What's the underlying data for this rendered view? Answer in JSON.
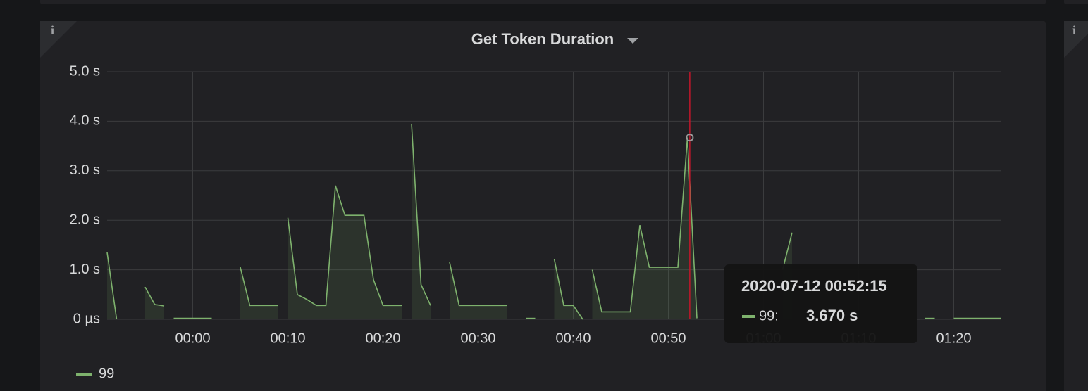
{
  "chart_data": {
    "type": "line",
    "title": "Get Token Duration",
    "x": [
      "23:51",
      "23:52",
      null,
      "23:55",
      "23:56",
      "23:57",
      null,
      "23:58",
      "00:02",
      null,
      "00:05",
      "00:06",
      "00:09",
      null,
      "00:10",
      "00:11",
      "00:12",
      "00:13",
      "00:14",
      "00:15",
      "00:16",
      "00:17",
      "00:18",
      "00:19",
      "00:20",
      "00:21",
      "00:22",
      null,
      "00:23",
      "00:24",
      "00:25",
      null,
      "00:27",
      "00:28",
      "00:33",
      null,
      "00:35",
      "00:36",
      null,
      "00:38",
      "00:39",
      "00:40",
      "00:41",
      null,
      "00:42",
      "00:43",
      "00:46",
      "00:47",
      "00:48",
      "00:51",
      "00:52",
      "00:53",
      null,
      "01:02",
      "01:03",
      null,
      "01:17",
      "01:18",
      null,
      "01:20",
      "01:25"
    ],
    "series": [
      {
        "name": "99",
        "color": "#7eb26d",
        "values": [
          1.35,
          0,
          null,
          0.65,
          0.3,
          0.27,
          null,
          0.02,
          0.02,
          null,
          1.05,
          0.28,
          0.28,
          null,
          2.05,
          0.5,
          0.4,
          0.28,
          0.28,
          2.7,
          2.1,
          2.1,
          2.1,
          0.8,
          0.28,
          0.28,
          0.28,
          null,
          3.95,
          0.7,
          0.28,
          null,
          1.15,
          0.28,
          0.28,
          null,
          0.02,
          0.02,
          null,
          1.22,
          0.28,
          0.28,
          0,
          null,
          1.0,
          0.15,
          0.15,
          1.9,
          1.05,
          1.05,
          3.67,
          0.02,
          null,
          1.0,
          1.75,
          null,
          0.02,
          0.02,
          null,
          0.02,
          0.02
        ]
      }
    ],
    "xlim": [
      "23:51",
      "01:25"
    ],
    "xticks": [
      "00:00",
      "00:10",
      "00:20",
      "00:30",
      "00:40",
      "00:50",
      "01:00",
      "01:10",
      "01:20"
    ],
    "ylim": [
      0,
      5
    ],
    "yticks": [
      {
        "value": 0,
        "label": "0 µs"
      },
      {
        "value": 1,
        "label": "1.0 s"
      },
      {
        "value": 2,
        "label": "2.0 s"
      },
      {
        "value": 3,
        "label": "3.0 s"
      },
      {
        "value": 4,
        "label": "4.0 s"
      },
      {
        "value": 5,
        "label": "5.0 s"
      }
    ],
    "grid": true,
    "legend": "bottom-left",
    "tooltip": {
      "time": "2020-07-12 00:52:15",
      "series_label": "99:",
      "value": 3.67,
      "value_label": "3.670 s"
    }
  }
}
